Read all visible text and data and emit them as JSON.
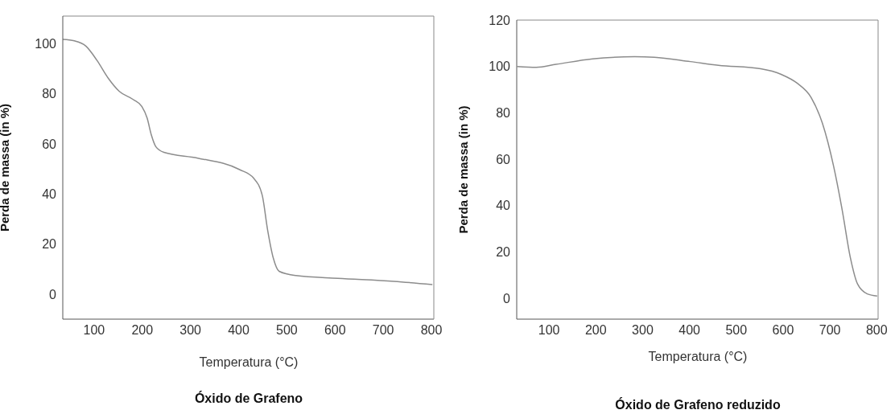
{
  "chart_data": [
    {
      "type": "line",
      "title": "Óxido de Grafeno",
      "xlabel": "Temperatura (°C)",
      "ylabel": "Perda de massa (in %)",
      "color": "#8c8c8c",
      "x": [
        35,
        59,
        83,
        106,
        129,
        152,
        181,
        199,
        210,
        219,
        228,
        245,
        315,
        402,
        431,
        449,
        460,
        472,
        484,
        519,
        606,
        722,
        802
      ],
      "values": [
        101.7,
        101.1,
        99,
        93.3,
        86.3,
        81,
        77.7,
        74.9,
        70.3,
        63.4,
        58.9,
        56.6,
        54.3,
        49.7,
        46.3,
        39.4,
        25.7,
        14.3,
        9.1,
        7.4,
        6.3,
        5.1,
        3.8
      ],
      "xlim": [
        35,
        805
      ],
      "ylim": [
        -10,
        111
      ],
      "xticks": [
        100,
        200,
        300,
        400,
        500,
        600,
        700,
        800
      ],
      "yticks": [
        0,
        20,
        40,
        60,
        80,
        100
      ]
    },
    {
      "type": "line",
      "title": "Óxido de Grafeno reduzido",
      "xlabel": "Temperatura (°C)",
      "ylabel": "Perda de massa (in %)",
      "color": "#8c8c8c",
      "x": [
        32,
        73,
        115,
        193,
        283,
        325,
        402,
        462,
        552,
        597,
        630,
        660,
        684,
        708,
        726,
        744,
        759,
        780,
        801
      ],
      "values": [
        100,
        99.6,
        100.9,
        103.3,
        104.2,
        104,
        102.1,
        100.5,
        99,
        96.5,
        92.8,
        86.6,
        75.5,
        56.9,
        38.4,
        17.3,
        6.2,
        1.9,
        1
      ],
      "xlim": [
        31,
        803
      ],
      "ylim": [
        -9,
        120
      ],
      "xticks": [
        100,
        200,
        300,
        400,
        500,
        600,
        700,
        800
      ],
      "yticks": [
        0,
        20,
        40,
        60,
        80,
        100,
        120
      ]
    }
  ]
}
